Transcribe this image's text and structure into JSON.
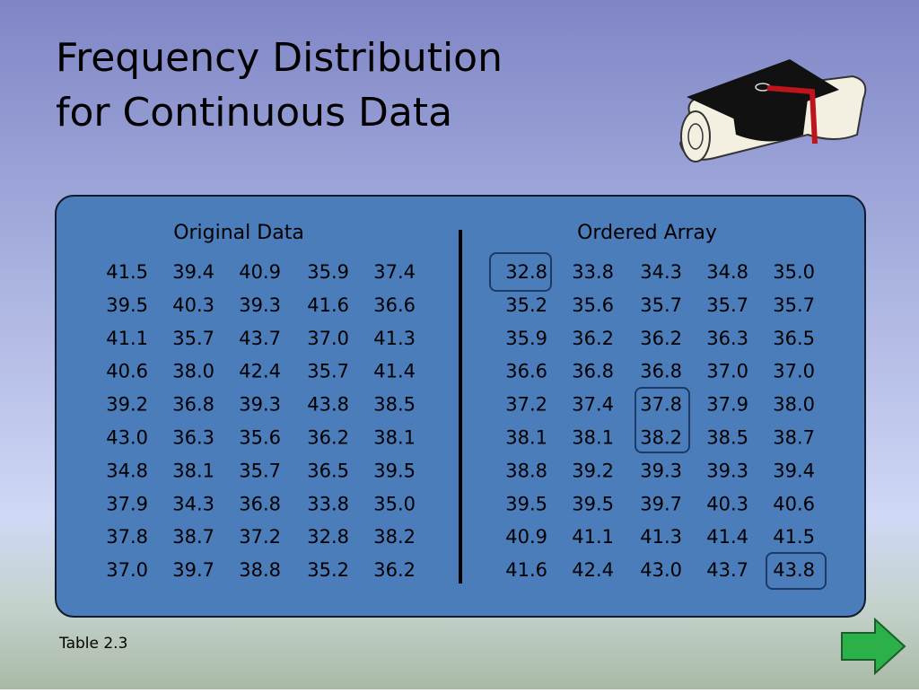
{
  "title": [
    "Frequency Distribution",
    "for Continuous Data"
  ],
  "original": {
    "heading": "Original Data",
    "rows": [
      [
        "41.5",
        "39.4",
        "40.9",
        "35.9",
        "37.4"
      ],
      [
        "39.5",
        "40.3",
        "39.3",
        "41.6",
        "36.6"
      ],
      [
        "41.1",
        "35.7",
        "43.7",
        "37.0",
        "41.3"
      ],
      [
        "40.6",
        "38.0",
        "42.4",
        "35.7",
        "41.4"
      ],
      [
        "39.2",
        "36.8",
        "39.3",
        "43.8",
        "38.5"
      ],
      [
        "43.0",
        "36.3",
        "35.6",
        "36.2",
        "38.1"
      ],
      [
        "34.8",
        "38.1",
        "35.7",
        "36.5",
        "39.5"
      ],
      [
        "37.9",
        "34.3",
        "36.8",
        "33.8",
        "35.0"
      ],
      [
        "37.8",
        "38.7",
        "37.2",
        "32.8",
        "38.2"
      ],
      [
        "37.0",
        "39.7",
        "38.8",
        "35.2",
        "36.2"
      ]
    ]
  },
  "ordered": {
    "heading": "Ordered Array",
    "rows": [
      [
        "32.8",
        "33.8",
        "34.3",
        "34.8",
        "35.0"
      ],
      [
        "35.2",
        "35.6",
        "35.7",
        "35.7",
        "35.7"
      ],
      [
        "35.9",
        "36.2",
        "36.2",
        "36.3",
        "36.5"
      ],
      [
        "36.6",
        "36.8",
        "36.8",
        "37.0",
        "37.0"
      ],
      [
        "37.2",
        "37.4",
        "37.8",
        "37.9",
        "38.0"
      ],
      [
        "38.1",
        "38.1",
        "38.2",
        "38.5",
        "38.7"
      ],
      [
        "38.8",
        "39.2",
        "39.3",
        "39.3",
        "39.4"
      ],
      [
        "39.5",
        "39.5",
        "39.7",
        "40.3",
        "40.6"
      ],
      [
        "40.9",
        "41.1",
        "41.3",
        "41.4",
        "41.5"
      ],
      [
        "41.6",
        "42.4",
        "43.0",
        "43.7",
        "43.8"
      ]
    ]
  },
  "caption": "Table 2.3"
}
